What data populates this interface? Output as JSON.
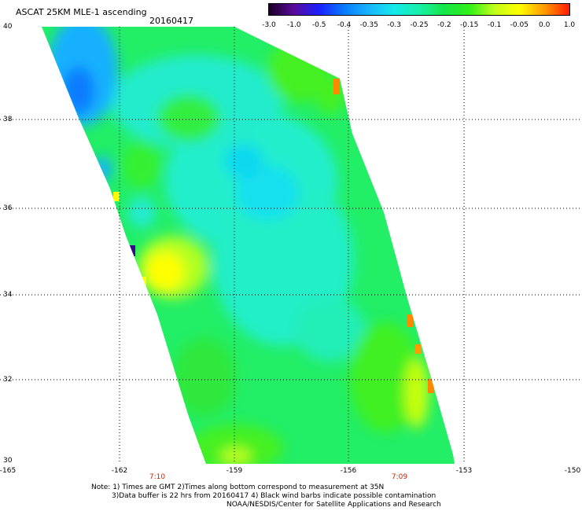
{
  "header": {
    "title": "ASCAT 25KM MLE-1 ascending",
    "date": "20160417"
  },
  "colorbar": {
    "labels": [
      "-3.0",
      "-1.0",
      "-0.5",
      "-0.4",
      "-0.35",
      "-0.3",
      "-0.25",
      "-0.2",
      "-0.15",
      "-0.1",
      "-0.05",
      "0.0",
      "1.0"
    ],
    "colors": [
      "#1a0026",
      "#5a0a9a",
      "#1a20ff",
      "#0a7aff",
      "#18b6ff",
      "#14eaea",
      "#16f0a8",
      "#14e646",
      "#30f018",
      "#c0ff18",
      "#ffff00",
      "#ff9a00",
      "#ff1a00"
    ]
  },
  "axes": {
    "lat_labels": [
      "40",
      "38",
      "36",
      "34",
      "32",
      "30"
    ],
    "lon_labels": [
      "-165",
      "-162",
      "-159",
      "-156",
      "-153",
      "-150"
    ],
    "time_labels": [
      "7:10",
      "7:09"
    ]
  },
  "notes": {
    "line1": "Note: 1) Times are GMT 2)Times along bottom correspond to measurement at 35N",
    "line2": "3)Data buffer is 22 hrs from 20160417 4) Black wind barbs indicate possible contamination",
    "line3": "NOAA/NESDIS/Center for Satellite Applications and Research"
  }
}
